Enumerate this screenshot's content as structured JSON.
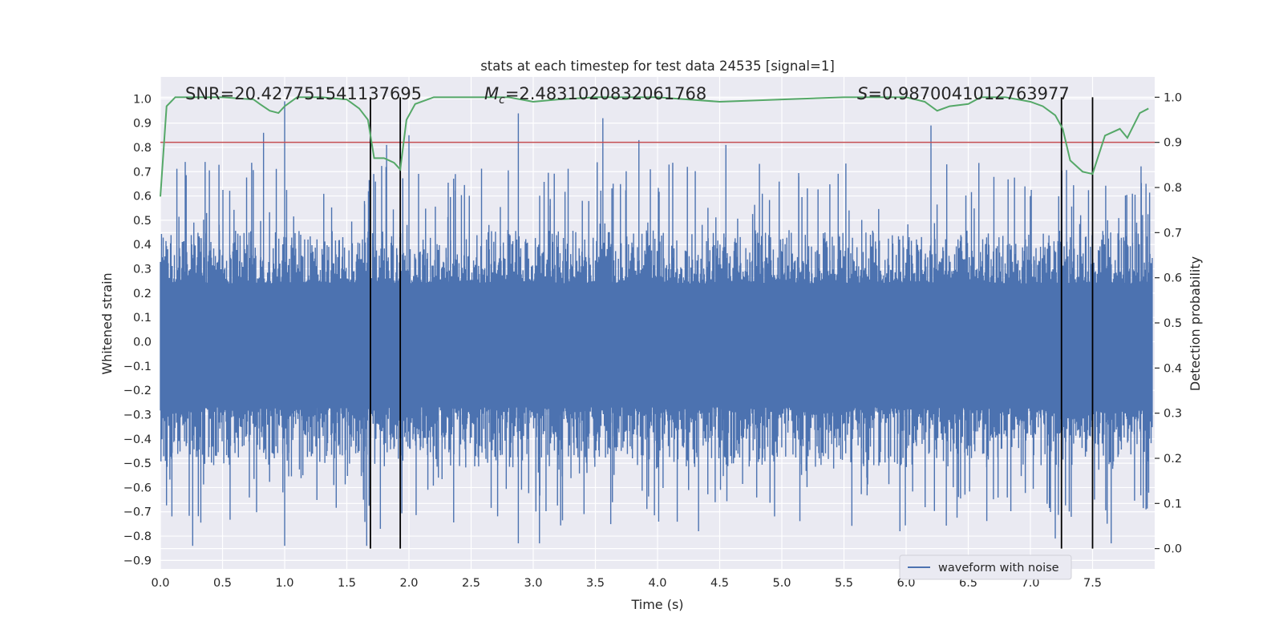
{
  "chart_data": {
    "type": "line",
    "title": "stats at each timestep for test data 24535 [signal=1]",
    "xlabel": "Time (s)",
    "ylabel_left": "Whitened strain",
    "ylabel_right": "Detection probability",
    "xlim": [
      0.0,
      8.0
    ],
    "ylim_left": [
      -0.935,
      1.09
    ],
    "ylim_right": [
      -0.045,
      1.045
    ],
    "x_ticks": [
      0.0,
      0.5,
      1.0,
      1.5,
      2.0,
      2.5,
      3.0,
      3.5,
      4.0,
      4.5,
      5.0,
      5.5,
      6.0,
      6.5,
      7.0,
      7.5
    ],
    "x_tick_labels": [
      "0.0",
      "0.5",
      "1.0",
      "1.5",
      "2.0",
      "2.5",
      "3.0",
      "3.5",
      "4.0",
      "4.5",
      "5.0",
      "5.5",
      "6.0",
      "6.5",
      "7.0",
      "7.5"
    ],
    "y_left_ticks": [
      1.0,
      0.9,
      0.8,
      0.7,
      0.6,
      0.5,
      0.4,
      0.3,
      0.2,
      0.1,
      0.0,
      -0.1,
      -0.2,
      -0.3,
      -0.4,
      -0.5,
      -0.6,
      -0.7,
      -0.8,
      -0.9
    ],
    "y_left_tick_labels": [
      "1.0",
      "0.9",
      "0.8",
      "0.7",
      "0.6",
      "0.5",
      "0.4",
      "0.3",
      "0.2",
      "0.1",
      "0.0",
      "−0.1",
      "−0.2",
      "−0.3",
      "−0.4",
      "−0.5",
      "−0.6",
      "−0.7",
      "−0.8",
      "−0.9"
    ],
    "y_right_ticks": [
      1.0,
      0.9,
      0.8,
      0.7,
      0.6,
      0.5,
      0.4,
      0.3,
      0.2,
      0.1,
      0.0
    ],
    "y_right_tick_labels": [
      "1.0",
      "0.9",
      "0.8",
      "0.7",
      "0.6",
      "0.5",
      "0.4",
      "0.3",
      "0.2",
      "0.1",
      "0.0"
    ],
    "grid": true,
    "legend": {
      "placement": "lower-right",
      "entries": [
        "waveform with noise"
      ]
    },
    "annotations": {
      "snr": "SNR=20.427751541137695",
      "mc_symbol": "M",
      "mc_sub": "c",
      "mc_value": "=2.4831020832061768",
      "s_symbol": "S",
      "s_value": "=0.9870041012763977"
    },
    "threshold": {
      "axis": "right",
      "value": 0.9,
      "color": "#c44e52"
    },
    "vertical_lines": {
      "x": [
        1.69,
        1.93,
        7.25,
        7.5
      ],
      "y_range_right": [
        0.0,
        1.0
      ],
      "color": "#000000"
    },
    "series": [
      {
        "name": "waveform with noise",
        "axis": "left",
        "color": "#4c72b0",
        "style": "noise",
        "envelope_pos": 0.4,
        "envelope_neg": -0.45,
        "peaks_pos": [
          [
            0.2,
            0.74
          ],
          [
            0.36,
            0.74
          ],
          [
            0.83,
            0.86
          ],
          [
            1.0,
            0.99
          ],
          [
            1.82,
            0.81
          ],
          [
            2.0,
            0.85
          ],
          [
            2.88,
            0.94
          ],
          [
            3.56,
            0.92
          ],
          [
            3.85,
            0.83
          ],
          [
            4.55,
            0.81
          ],
          [
            6.2,
            0.89
          ],
          [
            7.93,
            0.65
          ]
        ],
        "peaks_neg": [
          [
            0.26,
            -0.84
          ],
          [
            1.0,
            -0.84
          ],
          [
            1.66,
            -0.84
          ],
          [
            1.77,
            -0.77
          ],
          [
            2.88,
            -0.83
          ],
          [
            3.05,
            -0.83
          ],
          [
            4.33,
            -0.78
          ],
          [
            5.95,
            -0.78
          ],
          [
            7.2,
            -0.81
          ],
          [
            7.65,
            -0.83
          ],
          [
            7.93,
            -0.69
          ]
        ]
      },
      {
        "name": "",
        "axis": "right",
        "color": "#55a868",
        "x": [
          0.0,
          0.05,
          0.12,
          0.25,
          0.5,
          0.75,
          0.8,
          0.88,
          0.95,
          1.0,
          1.1,
          1.3,
          1.5,
          1.6,
          1.67,
          1.72,
          1.8,
          1.88,
          1.93,
          1.98,
          2.05,
          2.2,
          2.5,
          2.8,
          3.0,
          3.2,
          3.5,
          4.0,
          4.5,
          5.0,
          5.5,
          6.0,
          6.15,
          6.25,
          6.35,
          6.5,
          6.6,
          6.8,
          7.0,
          7.1,
          7.2,
          7.26,
          7.32,
          7.42,
          7.5,
          7.6,
          7.72,
          7.78,
          7.88,
          7.95
        ],
        "y": [
          0.78,
          0.98,
          1.0,
          1.0,
          1.0,
          0.995,
          0.985,
          0.97,
          0.965,
          0.98,
          1.0,
          1.0,
          0.995,
          0.975,
          0.95,
          0.865,
          0.865,
          0.855,
          0.84,
          0.95,
          0.985,
          1.0,
          1.0,
          1.0,
          0.99,
          0.995,
          1.0,
          1.0,
          0.99,
          0.995,
          1.0,
          1.0,
          0.99,
          0.97,
          0.98,
          0.985,
          1.0,
          1.0,
          0.99,
          0.98,
          0.96,
          0.93,
          0.86,
          0.835,
          0.83,
          0.915,
          0.93,
          0.91,
          0.965,
          0.975
        ]
      }
    ]
  }
}
